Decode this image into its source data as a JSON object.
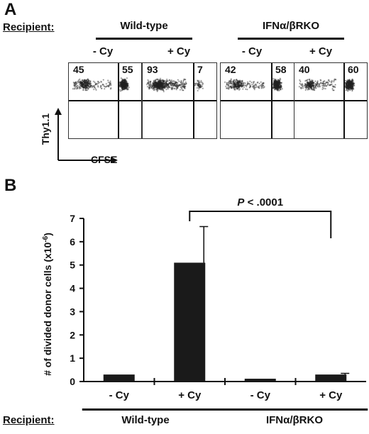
{
  "panel_a": {
    "letter": "A",
    "recipient_label": "Recipient:",
    "groups": [
      "Wild-type",
      "IFNα/βRKO"
    ],
    "conditions": [
      "- Cy",
      "+ Cy",
      "- Cy",
      "+ Cy"
    ],
    "plots": [
      {
        "left_pct": "45",
        "right_pct": "55",
        "left_frac": 0.45
      },
      {
        "left_pct": "93",
        "right_pct": "7",
        "left_frac": 0.93
      },
      {
        "left_pct": "42",
        "right_pct": "58",
        "left_frac": 0.42
      },
      {
        "left_pct": "40",
        "right_pct": "60",
        "left_frac": 0.4
      }
    ],
    "y_axis_label": "Thy1.1",
    "x_axis_label": "CFSE"
  },
  "panel_b": {
    "letter": "B",
    "recipient_label": "Recipient:",
    "groups": [
      "Wild-type",
      "IFNα/βRKO"
    ]
  },
  "chart_data": {
    "type": "bar",
    "categories": [
      "- Cy",
      "+ Cy",
      "- Cy",
      "+ Cy"
    ],
    "values": [
      0.3,
      5.1,
      0.12,
      0.3
    ],
    "errors": [
      0,
      1.55,
      0,
      0.05
    ],
    "title": "",
    "xlabel": "",
    "ylabel": "# of divided donor cells (x10",
    "ylabel_sup": "-6",
    "ylabel_end": ")",
    "ylim": [
      0,
      7
    ],
    "yticks": [
      0,
      1,
      2,
      3,
      4,
      5,
      6,
      7
    ],
    "grid": false,
    "bar_color": "#1a1a1a",
    "annotation": {
      "text_italic": "P",
      "text_rest": " < .0001",
      "from_index": 1,
      "to_index": 3
    }
  }
}
